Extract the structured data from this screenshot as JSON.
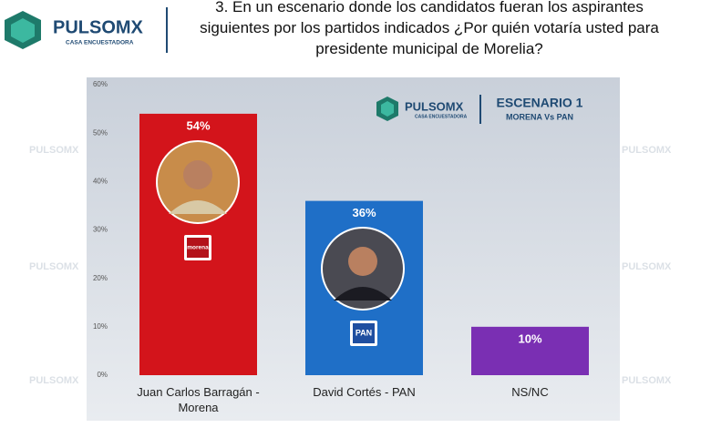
{
  "header": {
    "brand": "PULSOMX",
    "tagline": "CASA ENCUESTADORA",
    "question": "3. En un escenario donde los candidatos fueran los aspirantes siguientes por los partidos indicados ¿Por quién votaría usted para presidente municipal de Morelia?"
  },
  "chart_data": {
    "type": "bar",
    "badge": {
      "brand": "PULSOMX",
      "tagline": "CASA ENCUESTADORA",
      "title": "ESCENARIO 1",
      "subtitle": "MORENA Vs PAN"
    },
    "watermark": "PULSOMX",
    "categories": [
      "Juan Carlos Barragán - Morena",
      "David Cortés - PAN",
      "NS/NC"
    ],
    "values": [
      54,
      36,
      10
    ],
    "value_labels": [
      "54%",
      "36%",
      "10%"
    ],
    "colors": [
      "#d3141b",
      "#1f6fc7",
      "#7a2fb3"
    ],
    "party_logos": [
      "morena",
      "PAN"
    ],
    "ylim": [
      0,
      60
    ],
    "yticks": [
      {
        "value": 0,
        "label": "0%"
      },
      {
        "value": 10,
        "label": "10%"
      },
      {
        "value": 20,
        "label": "20%"
      },
      {
        "value": 30,
        "label": "30%"
      },
      {
        "value": 40,
        "label": "40%"
      },
      {
        "value": 50,
        "label": "50%"
      },
      {
        "value": 60,
        "label": "60%"
      }
    ],
    "grid": false
  }
}
